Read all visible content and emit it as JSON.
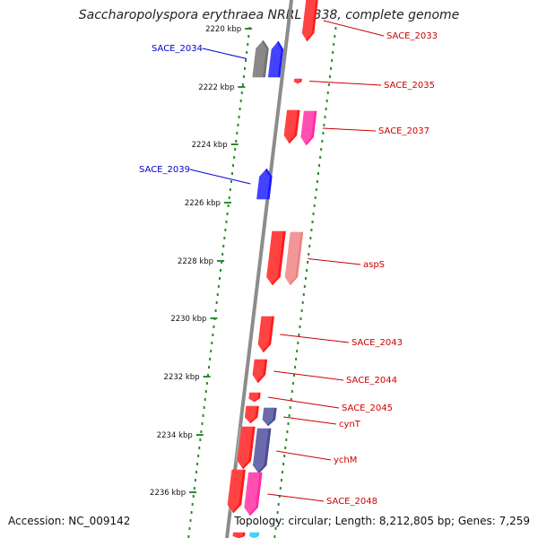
{
  "title": "Saccharopolyspora erythraea NRRL 2338, complete genome",
  "accession": "Accession: NC_009142",
  "summary": "Topology: circular; Length: 8,212,805 bp; Genes: 7,259",
  "colors": {
    "tick": "#2e8b2e",
    "backbone": "#8c8c8c",
    "forward_label": "#cc0000",
    "reverse_label": "#0000cc",
    "red": "#ff1a1a",
    "pink": "#ff2aa0",
    "salmon": "#f08080",
    "grey": "#707070",
    "blue": "#1a1aff",
    "navy": "#4a4a9a",
    "cyan": "#22c8ff"
  },
  "ticks": [
    "2220 kbp",
    "2222 kbp",
    "2224 kbp",
    "2226 kbp",
    "2228 kbp",
    "2230 kbp",
    "2232 kbp",
    "2234 kbp",
    "2236 kbp"
  ],
  "genes": [
    {
      "name": "SACE_2033",
      "strand": "forward",
      "labeled": true,
      "color": "red"
    },
    {
      "name": "SACE_2034",
      "strand": "reverse",
      "labeled": true,
      "color": "grey"
    },
    {
      "name": "",
      "strand": "reverse",
      "labeled": false,
      "color": "blue"
    },
    {
      "name": "SACE_2035",
      "strand": "forward",
      "labeled": true,
      "color": "red"
    },
    {
      "name": "",
      "strand": "forward",
      "labeled": false,
      "color": "red"
    },
    {
      "name": "SACE_2037",
      "strand": "forward",
      "labeled": true,
      "color": "pink"
    },
    {
      "name": "SACE_2039",
      "strand": "reverse",
      "labeled": true,
      "color": "blue"
    },
    {
      "name": "",
      "strand": "forward",
      "labeled": false,
      "color": "red"
    },
    {
      "name": "aspS",
      "strand": "forward",
      "labeled": true,
      "color": "salmon"
    },
    {
      "name": "SACE_2043",
      "strand": "forward",
      "labeled": true,
      "color": "red"
    },
    {
      "name": "SACE_2044",
      "strand": "forward",
      "labeled": true,
      "color": "red"
    },
    {
      "name": "SACE_2045",
      "strand": "forward",
      "labeled": true,
      "color": "red"
    },
    {
      "name": "",
      "strand": "forward",
      "labeled": false,
      "color": "red"
    },
    {
      "name": "cynT",
      "strand": "forward",
      "labeled": true,
      "color": "navy"
    },
    {
      "name": "",
      "strand": "forward",
      "labeled": false,
      "color": "red"
    },
    {
      "name": "ychM",
      "strand": "forward",
      "labeled": true,
      "color": "navy"
    },
    {
      "name": "",
      "strand": "forward",
      "labeled": false,
      "color": "red"
    },
    {
      "name": "SACE_2048",
      "strand": "forward",
      "labeled": true,
      "color": "pink"
    },
    {
      "name": "",
      "strand": "forward",
      "labeled": false,
      "color": "red"
    },
    {
      "name": "",
      "strand": "forward",
      "labeled": false,
      "color": "cyan"
    }
  ]
}
